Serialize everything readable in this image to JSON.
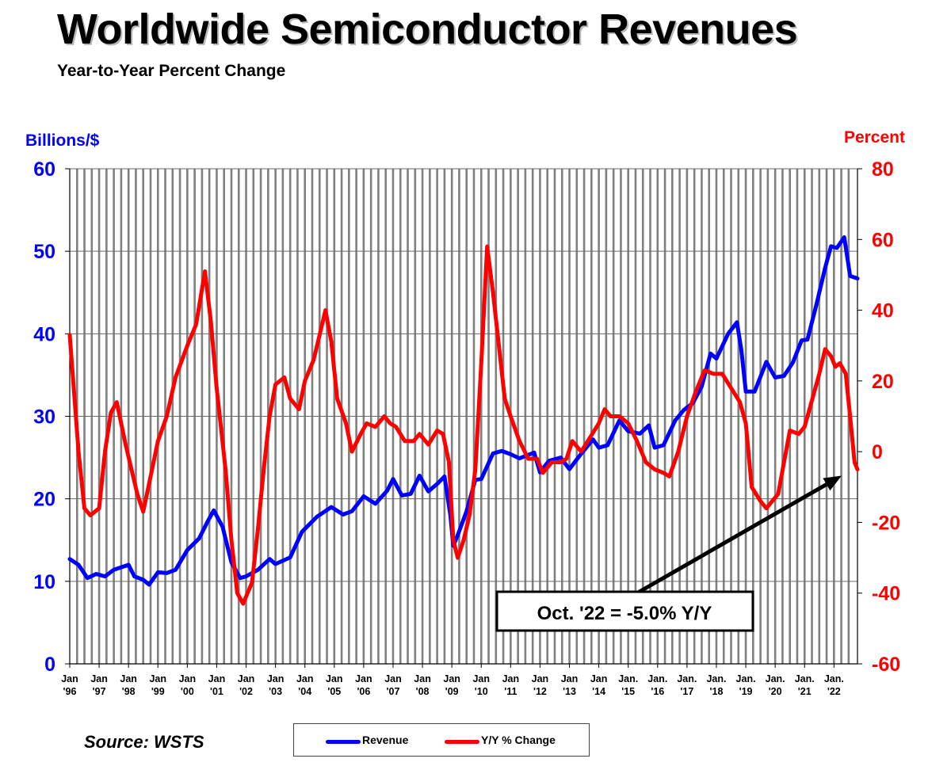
{
  "title": "Worldwide Semiconductor Revenues",
  "subtitle": "Year-to-Year Percent Change",
  "source": "Source: WSTS",
  "colors": {
    "revenue": "#0000ff",
    "change": "#ff0000",
    "annotation": "#000000",
    "grid": "#808080"
  },
  "chart_data": {
    "type": "line",
    "title": "Worldwide Semiconductor Revenues",
    "subtitle": "Year-to-Year Percent Change",
    "y_left": {
      "label": "Billions/$",
      "range": [
        0,
        60
      ],
      "ticks": [
        "0",
        "10",
        "20",
        "30",
        "40",
        "50",
        "60"
      ]
    },
    "y_right": {
      "label": "Percent",
      "range": [
        -60,
        80
      ],
      "ticks": [
        "-60",
        "-40",
        "-20",
        "0",
        "20",
        "40",
        "60",
        "80"
      ]
    },
    "x_range": [
      1996.0,
      2022.8
    ],
    "x_ticks": [
      {
        "x": 1996,
        "l1": "Jan",
        "l2": "'96"
      },
      {
        "x": 1997,
        "l1": "Jan",
        "l2": "'97"
      },
      {
        "x": 1998,
        "l1": "Jan",
        "l2": "'98"
      },
      {
        "x": 1999,
        "l1": "Jan",
        "l2": "'99"
      },
      {
        "x": 2000,
        "l1": "Jan",
        "l2": "'00"
      },
      {
        "x": 2001,
        "l1": "Jan",
        "l2": "'01"
      },
      {
        "x": 2002,
        "l1": "Jan",
        "l2": "'02"
      },
      {
        "x": 2003,
        "l1": "Jan",
        "l2": "'03"
      },
      {
        "x": 2004,
        "l1": "Jan",
        "l2": "'04"
      },
      {
        "x": 2005,
        "l1": "Jan",
        "l2": "'05"
      },
      {
        "x": 2006,
        "l1": "Jan",
        "l2": "'06"
      },
      {
        "x": 2007,
        "l1": "Jan",
        "l2": "'07"
      },
      {
        "x": 2008,
        "l1": "Jan",
        "l2": "'08"
      },
      {
        "x": 2009,
        "l1": "Jan",
        "l2": "'09"
      },
      {
        "x": 2010,
        "l1": "Jan",
        "l2": "'10"
      },
      {
        "x": 2011,
        "l1": "Jan",
        "l2": "'11"
      },
      {
        "x": 2012,
        "l1": "Jan",
        "l2": "'12"
      },
      {
        "x": 2013,
        "l1": "Jan",
        "l2": "'13"
      },
      {
        "x": 2014,
        "l1": "Jan",
        "l2": "'14"
      },
      {
        "x": 2015,
        "l1": "Jan.",
        "l2": "'15"
      },
      {
        "x": 2016,
        "l1": "Jan.",
        "l2": "'16"
      },
      {
        "x": 2017,
        "l1": "Jan.",
        "l2": "'17"
      },
      {
        "x": 2018,
        "l1": "Jan.",
        "l2": "'18"
      },
      {
        "x": 2019,
        "l1": "Jan.",
        "l2": "'19"
      },
      {
        "x": 2020,
        "l1": "Jan.",
        "l2": "'20"
      },
      {
        "x": 2021,
        "l1": "Jan.",
        "l2": "'21"
      },
      {
        "x": 2022,
        "l1": "Jan.",
        "l2": "'22"
      }
    ],
    "grid": "vertical",
    "series": [
      {
        "name": "Revenue",
        "axis": "left",
        "color": "#0000ff",
        "points": [
          [
            1996.0,
            12.7
          ],
          [
            1996.3,
            12.0
          ],
          [
            1996.6,
            10.4
          ],
          [
            1996.9,
            10.9
          ],
          [
            1997.2,
            10.6
          ],
          [
            1997.5,
            11.4
          ],
          [
            1998.0,
            12.0
          ],
          [
            1998.2,
            10.6
          ],
          [
            1998.5,
            10.2
          ],
          [
            1998.7,
            9.6
          ],
          [
            1999.0,
            11.1
          ],
          [
            1999.3,
            11.0
          ],
          [
            1999.6,
            11.4
          ],
          [
            2000.0,
            13.8
          ],
          [
            2000.4,
            15.2
          ],
          [
            2000.7,
            17.3
          ],
          [
            2000.9,
            18.6
          ],
          [
            2001.2,
            16.6
          ],
          [
            2001.5,
            12.3
          ],
          [
            2001.8,
            10.4
          ],
          [
            2002.0,
            10.6
          ],
          [
            2002.4,
            11.4
          ],
          [
            2002.8,
            12.7
          ],
          [
            2003.0,
            12.1
          ],
          [
            2003.5,
            12.9
          ],
          [
            2003.9,
            16.0
          ],
          [
            2004.4,
            17.8
          ],
          [
            2004.9,
            19.0
          ],
          [
            2005.3,
            18.1
          ],
          [
            2005.6,
            18.5
          ],
          [
            2006.0,
            20.3
          ],
          [
            2006.4,
            19.4
          ],
          [
            2006.8,
            21.0
          ],
          [
            2007.0,
            22.4
          ],
          [
            2007.3,
            20.4
          ],
          [
            2007.6,
            20.6
          ],
          [
            2007.9,
            22.8
          ],
          [
            2008.2,
            20.9
          ],
          [
            2008.5,
            21.8
          ],
          [
            2008.75,
            22.7
          ],
          [
            2008.95,
            18.0
          ],
          [
            2009.05,
            14.3
          ],
          [
            2009.2,
            15.6
          ],
          [
            2009.5,
            18.5
          ],
          [
            2009.8,
            22.3
          ],
          [
            2010.0,
            22.4
          ],
          [
            2010.4,
            25.5
          ],
          [
            2010.7,
            25.8
          ],
          [
            2011.0,
            25.4
          ],
          [
            2011.3,
            24.9
          ],
          [
            2011.8,
            25.6
          ],
          [
            2012.0,
            23.2
          ],
          [
            2012.3,
            24.6
          ],
          [
            2012.7,
            25.0
          ],
          [
            2013.0,
            23.6
          ],
          [
            2013.3,
            25.0
          ],
          [
            2013.8,
            27.2
          ],
          [
            2014.0,
            26.2
          ],
          [
            2014.3,
            26.5
          ],
          [
            2014.7,
            29.5
          ],
          [
            2015.0,
            28.2
          ],
          [
            2015.4,
            27.9
          ],
          [
            2015.7,
            28.9
          ],
          [
            2015.9,
            26.2
          ],
          [
            2016.2,
            26.5
          ],
          [
            2016.6,
            29.5
          ],
          [
            2016.9,
            30.8
          ],
          [
            2017.2,
            31.6
          ],
          [
            2017.5,
            33.6
          ],
          [
            2017.8,
            37.6
          ],
          [
            2018.0,
            37.0
          ],
          [
            2018.4,
            40.0
          ],
          [
            2018.7,
            41.4
          ],
          [
            2018.85,
            38.0
          ],
          [
            2019.0,
            33.0
          ],
          [
            2019.3,
            33.0
          ],
          [
            2019.7,
            36.6
          ],
          [
            2020.0,
            34.7
          ],
          [
            2020.3,
            34.9
          ],
          [
            2020.6,
            36.5
          ],
          [
            2020.9,
            39.2
          ],
          [
            2021.1,
            39.3
          ],
          [
            2021.4,
            43.5
          ],
          [
            2021.7,
            48.0
          ],
          [
            2021.9,
            50.6
          ],
          [
            2022.1,
            50.4
          ],
          [
            2022.35,
            51.7
          ],
          [
            2022.55,
            47.0
          ],
          [
            2022.8,
            46.7
          ]
        ]
      },
      {
        "name": "Y/Y % Change",
        "axis": "right",
        "color": "#ff0000",
        "points": [
          [
            1996.0,
            33
          ],
          [
            1996.3,
            0
          ],
          [
            1996.5,
            -16
          ],
          [
            1996.7,
            -18
          ],
          [
            1997.0,
            -16
          ],
          [
            1997.2,
            0
          ],
          [
            1997.4,
            11
          ],
          [
            1997.6,
            14
          ],
          [
            1997.9,
            2
          ],
          [
            1998.1,
            -5
          ],
          [
            1998.3,
            -12
          ],
          [
            1998.5,
            -17
          ],
          [
            1998.8,
            -5
          ],
          [
            1999.0,
            3
          ],
          [
            1999.3,
            10
          ],
          [
            1999.6,
            21
          ],
          [
            2000.0,
            30
          ],
          [
            2000.3,
            36
          ],
          [
            2000.5,
            46
          ],
          [
            2000.6,
            51
          ],
          [
            2000.8,
            37
          ],
          [
            2001.0,
            18
          ],
          [
            2001.3,
            -5
          ],
          [
            2001.5,
            -25
          ],
          [
            2001.7,
            -40
          ],
          [
            2001.9,
            -43
          ],
          [
            2002.2,
            -37
          ],
          [
            2002.4,
            -22
          ],
          [
            2002.6,
            -5
          ],
          [
            2002.8,
            10
          ],
          [
            2003.0,
            19
          ],
          [
            2003.3,
            21
          ],
          [
            2003.5,
            15
          ],
          [
            2003.8,
            12
          ],
          [
            2004.0,
            20
          ],
          [
            2004.3,
            26
          ],
          [
            2004.5,
            33
          ],
          [
            2004.7,
            40
          ],
          [
            2004.9,
            31
          ],
          [
            2005.1,
            15
          ],
          [
            2005.4,
            8
          ],
          [
            2005.6,
            0
          ],
          [
            2005.9,
            5
          ],
          [
            2006.1,
            8
          ],
          [
            2006.4,
            7
          ],
          [
            2006.7,
            10
          ],
          [
            2006.9,
            8
          ],
          [
            2007.1,
            7
          ],
          [
            2007.4,
            3
          ],
          [
            2007.7,
            3
          ],
          [
            2007.9,
            5
          ],
          [
            2008.2,
            2
          ],
          [
            2008.5,
            6
          ],
          [
            2008.7,
            5
          ],
          [
            2008.9,
            -3
          ],
          [
            2009.05,
            -25
          ],
          [
            2009.2,
            -30
          ],
          [
            2009.4,
            -25
          ],
          [
            2009.6,
            -18
          ],
          [
            2009.8,
            -5
          ],
          [
            2010.0,
            25
          ],
          [
            2010.2,
            58
          ],
          [
            2010.4,
            45
          ],
          [
            2010.6,
            30
          ],
          [
            2010.8,
            15
          ],
          [
            2011.0,
            10
          ],
          [
            2011.3,
            3
          ],
          [
            2011.6,
            -2
          ],
          [
            2011.9,
            -2
          ],
          [
            2012.1,
            -6
          ],
          [
            2012.4,
            -3
          ],
          [
            2012.7,
            -3
          ],
          [
            2012.9,
            -2
          ],
          [
            2013.1,
            3
          ],
          [
            2013.4,
            0
          ],
          [
            2013.7,
            4
          ],
          [
            2014.0,
            8
          ],
          [
            2014.2,
            12
          ],
          [
            2014.4,
            10
          ],
          [
            2014.7,
            10
          ],
          [
            2015.0,
            8
          ],
          [
            2015.3,
            3
          ],
          [
            2015.6,
            -3
          ],
          [
            2015.9,
            -5
          ],
          [
            2016.2,
            -6
          ],
          [
            2016.4,
            -7
          ],
          [
            2016.7,
            0
          ],
          [
            2017.0,
            10
          ],
          [
            2017.3,
            17
          ],
          [
            2017.6,
            23
          ],
          [
            2017.9,
            22
          ],
          [
            2018.2,
            22
          ],
          [
            2018.5,
            18
          ],
          [
            2018.8,
            14
          ],
          [
            2019.0,
            8
          ],
          [
            2019.2,
            -10
          ],
          [
            2019.5,
            -14
          ],
          [
            2019.7,
            -16
          ],
          [
            2019.9,
            -14
          ],
          [
            2020.1,
            -12
          ],
          [
            2020.3,
            -3
          ],
          [
            2020.5,
            6
          ],
          [
            2020.8,
            5
          ],
          [
            2021.0,
            7
          ],
          [
            2021.2,
            13
          ],
          [
            2021.5,
            22
          ],
          [
            2021.7,
            29
          ],
          [
            2021.9,
            27
          ],
          [
            2022.05,
            24
          ],
          [
            2022.2,
            25
          ],
          [
            2022.4,
            22
          ],
          [
            2022.55,
            10
          ],
          [
            2022.7,
            -3
          ],
          [
            2022.8,
            -5
          ]
        ]
      }
    ],
    "annotation": {
      "text": "Oct. '22 = -5.0% Y/Y",
      "x": 2022.8,
      "y": -5.0,
      "axis": "right"
    },
    "legend": {
      "position": "bottom-center",
      "entries": [
        "Revenue",
        "Y/Y % Change"
      ]
    }
  }
}
